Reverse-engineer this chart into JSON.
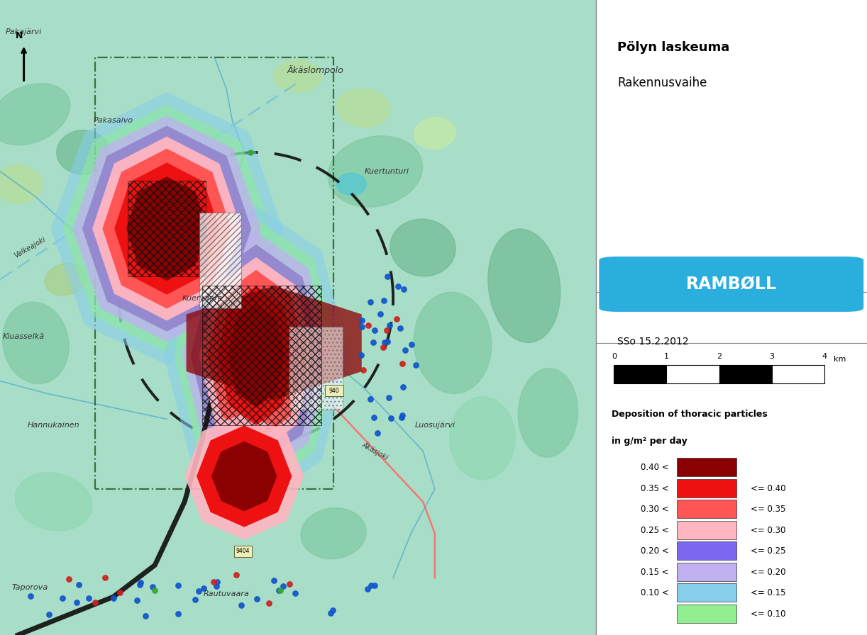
{
  "title_line1": "Pölyn laskeuma",
  "title_line2": "Rakennusvaihe",
  "logo_text": "RAMBØLL",
  "date_text": "SSo 15.2.2012",
  "legend_title_line1": "Deposition of thoracic particles",
  "legend_title_line2": "in g/m² per day",
  "legend_items": [
    {
      "label_left": "0.40 <",
      "label_right": "",
      "color": "#8B0000"
    },
    {
      "label_left": "0.35 <",
      "label_right": "<= 0.40",
      "color": "#EE1111"
    },
    {
      "label_left": "0.30 <",
      "label_right": "<= 0.35",
      "color": "#FF5555"
    },
    {
      "label_left": "0.25 <",
      "label_right": "<= 0.30",
      "color": "#FFB6C1"
    },
    {
      "label_left": "0.20 <",
      "label_right": "<= 0.25",
      "color": "#7B68EE"
    },
    {
      "label_left": "0.15 <",
      "label_right": "<= 0.20",
      "color": "#C0B0F0"
    },
    {
      "label_left": "0.10 <",
      "label_right": "<= 0.15",
      "color": "#87CEEB"
    },
    {
      "label_left": "",
      "label_right": "<= 0.10",
      "color": "#90EE90"
    }
  ],
  "scale_ticks": [
    0,
    1,
    2,
    3,
    4
  ],
  "scale_label": "km",
  "panel_bg": "#ffffff",
  "map_bg": "#A8DDC8",
  "logo_bg": "#29AEDE",
  "logo_text_color": "#ffffff"
}
